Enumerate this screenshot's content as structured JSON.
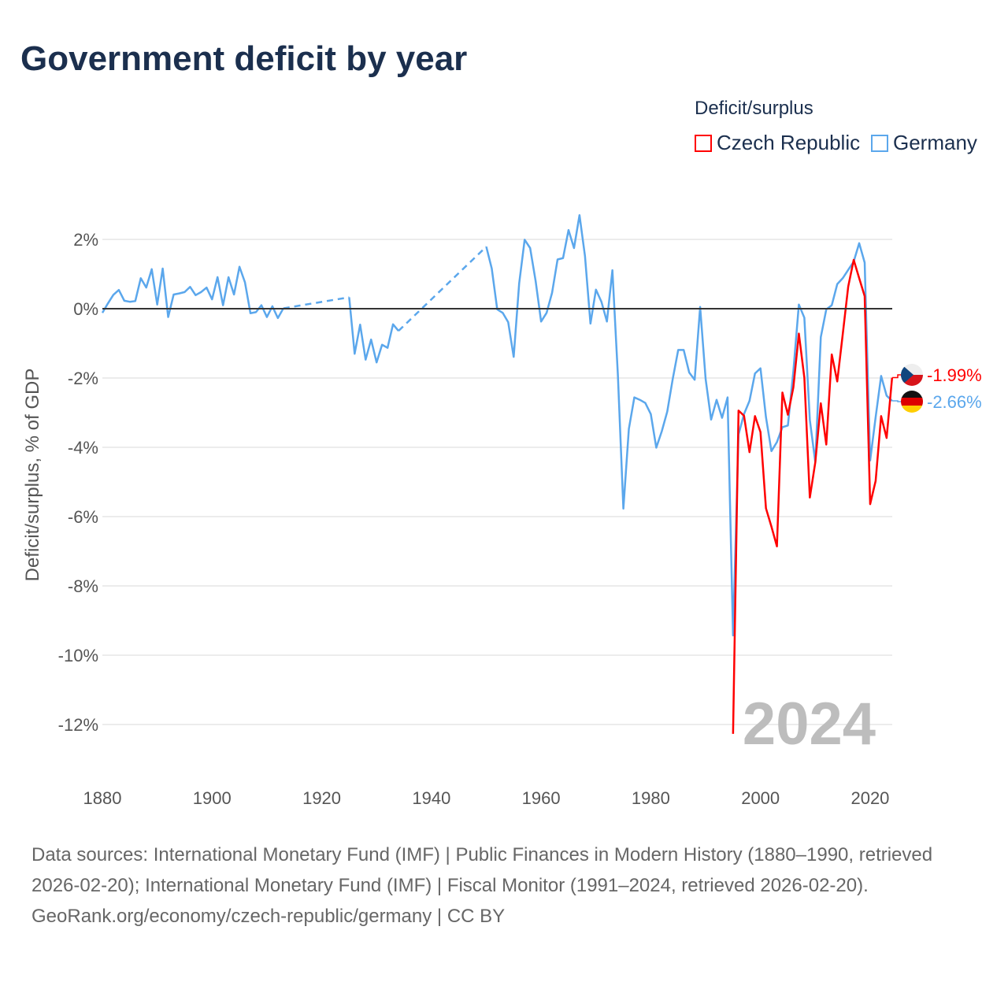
{
  "title": "Government deficit by year",
  "legend": {
    "title": "Deficit/surplus",
    "items": [
      {
        "label": "Czech Republic",
        "color": "#ff0000"
      },
      {
        "label": "Germany",
        "color": "#5ba7ec"
      }
    ]
  },
  "footer": {
    "sources": "Data sources: International Monetary Fund (IMF) | Public Finances in Modern History (1880–1990, retrieved 2026-02-20); International Monetary Fund (IMF) | Fiscal Monitor (1991–2024, retrieved 2026-02-20).",
    "credit": "GeoRank.org/economy/czech-republic/germany | CC BY"
  },
  "chart_data": {
    "type": "line",
    "title": "Government deficit by year",
    "xlabel": "",
    "ylabel": "Deficit/surplus, % of GDP",
    "xlim": [
      1880,
      2024
    ],
    "ylim": [
      -13.5,
      3
    ],
    "x_ticks": [
      1880,
      1900,
      1920,
      1940,
      1960,
      1980,
      2000,
      2020
    ],
    "y_ticks": [
      2,
      0,
      -2,
      -4,
      -6,
      -8,
      -10,
      -12
    ],
    "y_tick_labels": [
      "2%",
      "0%",
      "-2%",
      "-4%",
      "-6%",
      "-8%",
      "-10%",
      "-12%"
    ],
    "grid": true,
    "legend_position": "top-right",
    "year_watermark": "2024",
    "series": [
      {
        "name": "Czech Republic",
        "color": "#ff0000",
        "end_label": "-1.99%",
        "segments": [
          {
            "start": 1995,
            "values": [
              -12.27,
              -2.94,
              -3.09,
              -4.14,
              -3.1,
              -3.56,
              -5.76,
              -6.29,
              -6.86,
              -2.42,
              -3.06,
              -2.27,
              -0.72,
              -1.99,
              -5.45,
              -4.43,
              -2.73,
              -3.92,
              -1.32,
              -2.1,
              -0.74,
              0.64,
              1.41,
              0.88,
              0.36,
              -5.64,
              -4.97,
              -3.1,
              -3.73,
              -1.99
            ]
          }
        ]
      },
      {
        "name": "Germany",
        "color": "#5ba7ec",
        "end_label": "-2.66%",
        "segments": [
          {
            "start": 1880,
            "values": [
              -0.12,
              0.15,
              0.4,
              0.54,
              0.23,
              0.2,
              0.22,
              0.88,
              0.61,
              1.14,
              0.12,
              1.16,
              -0.24,
              0.41,
              0.44,
              0.48,
              0.63,
              0.39,
              0.48,
              0.61,
              0.27,
              0.91,
              0.1,
              0.91,
              0.41,
              1.21,
              0.76,
              -0.13,
              -0.1,
              0.1,
              -0.24,
              0.07,
              -0.27,
              0.01
            ]
          },
          {
            "start": 1925,
            "values": [
              0.33,
              -1.3,
              -0.46,
              -1.47,
              -0.89,
              -1.55,
              -1.04,
              -1.13,
              -0.45,
              -0.64
            ]
          },
          {
            "start": 1950,
            "values": [
              1.79,
              1.16,
              -0.02,
              -0.12,
              -0.39,
              -1.39,
              0.73,
              1.99,
              1.75,
              0.8,
              -0.37,
              -0.12,
              0.46,
              1.42,
              1.46,
              2.27,
              1.75,
              2.7,
              1.52,
              -0.43,
              0.55,
              0.2,
              -0.37,
              1.11,
              -1.92,
              -5.77,
              -3.47,
              -2.56,
              -2.63,
              -2.72,
              -3.04,
              -4.01,
              -3.54,
              -2.97,
              -2.03,
              -1.19,
              -1.19,
              -1.84,
              -2.05,
              0.05,
              -2.03,
              -3.2,
              -2.63,
              -3.15,
              -2.56,
              -9.43,
              -3.63,
              -3.04,
              -2.66,
              -1.87,
              -1.72,
              -3.13,
              -4.11,
              -3.85,
              -3.42,
              -3.37,
              -1.8,
              0.12,
              -0.26,
              -3.21,
              -4.43,
              -0.82,
              -0.02,
              0.1,
              0.71,
              0.88,
              1.12,
              1.36,
              1.89,
              1.33,
              -4.38,
              -3.13,
              -1.94,
              -2.51,
              -2.66
            ]
          }
        ]
      }
    ]
  }
}
